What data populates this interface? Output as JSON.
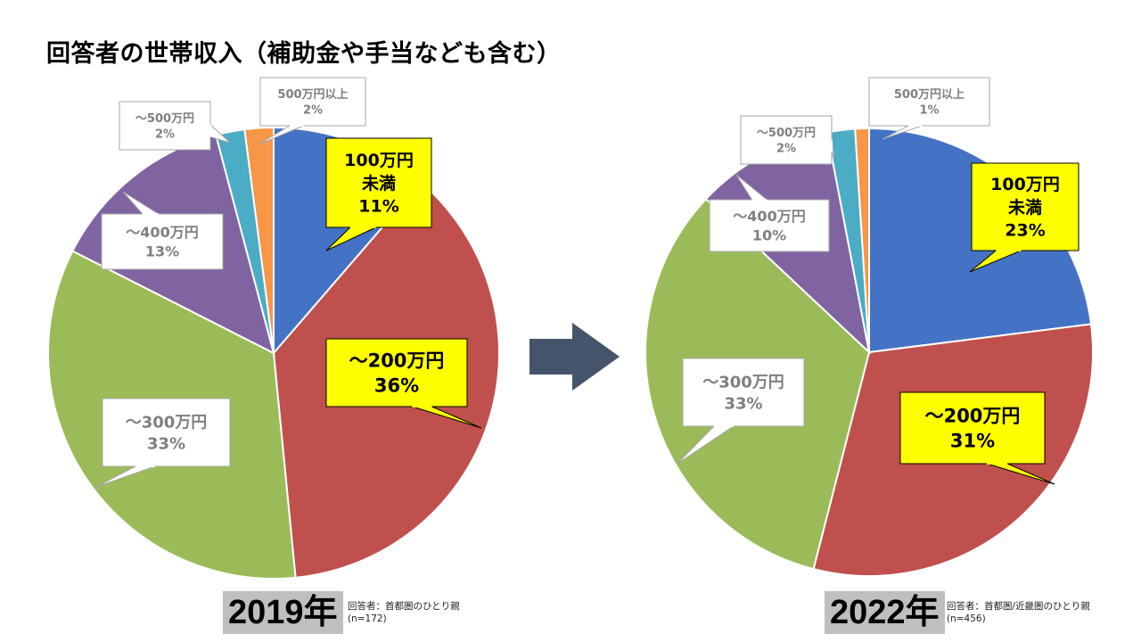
{
  "title": "回答者の世帯収入（補助金や手当なども含む）",
  "colors": {
    "slice_100": "#4472c4",
    "slice_200": "#c0504d",
    "slice_300": "#9bbb59",
    "slice_400": "#8064a2",
    "slice_500": "#4bacc6",
    "slice_500plus": "#f79646",
    "arrow": "#44546a",
    "highlight_callout": "#ffff00",
    "plain_callout": "#ffffff",
    "year_bg": "#bfbfbf"
  },
  "chart_data": [
    {
      "type": "pie",
      "year_label": "2019年",
      "note_lines": [
        "回答者：首都圏のひとり親",
        "(n=172)"
      ],
      "slices": [
        {
          "id": "under100",
          "label_lines": [
            "100万円",
            "未満"
          ],
          "value": 11,
          "value_label": "11%",
          "highlight": true
        },
        {
          "id": "to200",
          "label_lines": [
            "～200万円"
          ],
          "value": 36,
          "value_label": "36%",
          "highlight": true
        },
        {
          "id": "to300",
          "label_lines": [
            "～300万円"
          ],
          "value": 33,
          "value_label": "33%",
          "highlight": false
        },
        {
          "id": "to400",
          "label_lines": [
            "～400万円"
          ],
          "value": 13,
          "value_label": "13%",
          "highlight": false
        },
        {
          "id": "to500",
          "label_lines": [
            "～500万円"
          ],
          "value": 2,
          "value_label": "2%",
          "highlight": false
        },
        {
          "id": "over500",
          "label_lines": [
            "500万円以上"
          ],
          "value": 2,
          "value_label": "2%",
          "highlight": false
        }
      ]
    },
    {
      "type": "pie",
      "year_label": "2022年",
      "note_lines": [
        "回答者：首都圏/近畿圏のひとり親",
        "(n=456)"
      ],
      "slices": [
        {
          "id": "under100",
          "label_lines": [
            "100万円",
            "未満"
          ],
          "value": 23,
          "value_label": "23%",
          "highlight": true
        },
        {
          "id": "to200",
          "label_lines": [
            "～200万円"
          ],
          "value": 31,
          "value_label": "31%",
          "highlight": true
        },
        {
          "id": "to300",
          "label_lines": [
            "～300万円"
          ],
          "value": 33,
          "value_label": "33%",
          "highlight": false
        },
        {
          "id": "to400",
          "label_lines": [
            "～400万円"
          ],
          "value": 10,
          "value_label": "10%",
          "highlight": false
        },
        {
          "id": "to500",
          "label_lines": [
            "～500万円"
          ],
          "value": 2,
          "value_label": "2%",
          "highlight": false
        },
        {
          "id": "over500",
          "label_lines": [
            "500万円以上"
          ],
          "value": 1,
          "value_label": "1%",
          "highlight": false
        }
      ]
    }
  ]
}
